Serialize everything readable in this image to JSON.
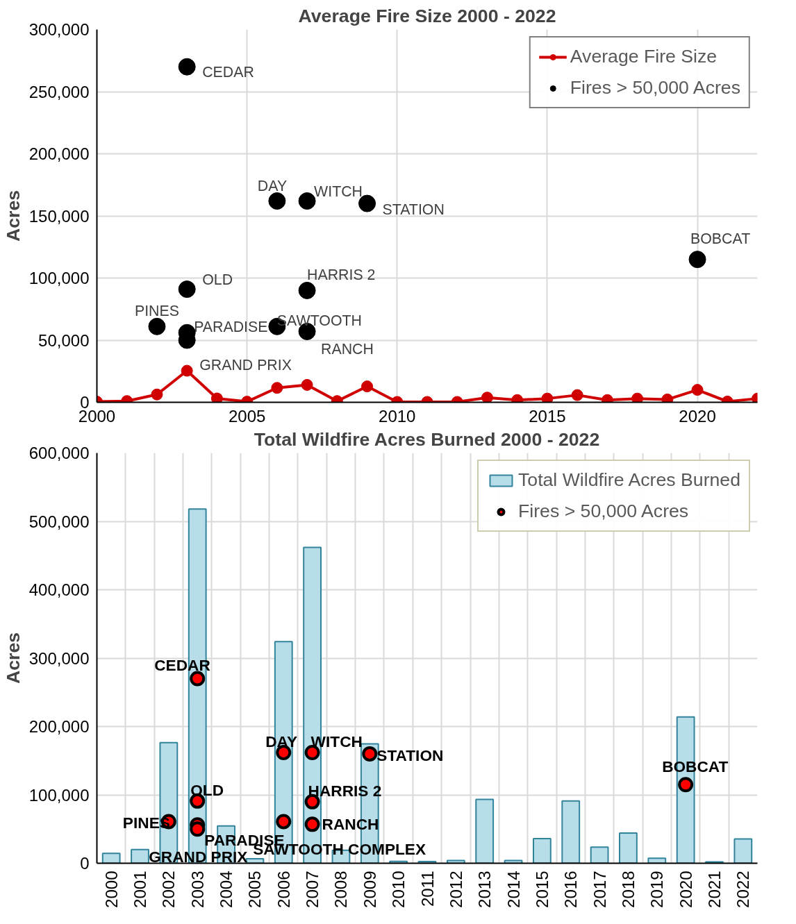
{
  "chart_data": [
    {
      "type": "line",
      "title": "Average Fire Size 2000 - 2022",
      "ylabel": "Acres",
      "xlim": [
        2000,
        2022
      ],
      "xticks": [
        2000,
        2005,
        2010,
        2015,
        2020
      ],
      "ylim": [
        0,
        300000
      ],
      "yticks": [
        0,
        {
          "value": 50000,
          "label": "50,000"
        },
        {
          "value": 100000,
          "label": "100,000"
        },
        {
          "value": 150000,
          "label": "150,000"
        },
        {
          "value": 200000,
          "label": "200,000"
        },
        {
          "value": 250000,
          "label": "250,000"
        },
        {
          "value": 300000,
          "label": "300,000"
        }
      ],
      "grid": true,
      "legend": "top right",
      "series": [
        {
          "name": "Average Fire Size",
          "type": "line",
          "color": "#d00000",
          "marker": "circle",
          "line_style": "solid",
          "x": [
            2000,
            2001,
            2002,
            2003,
            2004,
            2005,
            2006,
            2007,
            2008,
            2009,
            2010,
            2011,
            2012,
            2013,
            2014,
            2015,
            2016,
            2017,
            2018,
            2019,
            2020,
            2021,
            2022
          ],
          "values": [
            500,
            1000,
            6300,
            25400,
            3100,
            500,
            11600,
            14000,
            1000,
            12800,
            300,
            300,
            300,
            3800,
            1800,
            3000,
            5800,
            1800,
            3000,
            2300,
            10000,
            600,
            3000
          ]
        },
        {
          "name": "Fires > 50,000 Acres",
          "type": "scatter",
          "color": "#000000",
          "marker": "circle",
          "x": [
            2003,
            2006,
            2007,
            2009,
            2020,
            2003,
            2007,
            2002,
            2003,
            2003,
            2006,
            2007
          ],
          "values": [
            270000,
            162000,
            162000,
            160000,
            115000,
            91000,
            90000,
            61000,
            56000,
            50000,
            61000,
            57000
          ]
        }
      ],
      "annotations": [
        {
          "text": "CEDAR",
          "x": 2003,
          "y": 270000
        },
        {
          "text": "DAY",
          "x": 2006,
          "y": 162000
        },
        {
          "text": "WITCH",
          "x": 2007,
          "y": 162000
        },
        {
          "text": "STATION",
          "x": 2009,
          "y": 160000
        },
        {
          "text": "BOBCAT",
          "x": 2020,
          "y": 115000
        },
        {
          "text": "OLD",
          "x": 2003,
          "y": 91000
        },
        {
          "text": "HARRIS 2",
          "x": 2007,
          "y": 90000
        },
        {
          "text": "PINES",
          "x": 2002,
          "y": 61000
        },
        {
          "text": "PARADISE",
          "x": 2003,
          "y": 56000
        },
        {
          "text": "GRAND PRIX",
          "x": 2003,
          "y": 50000
        },
        {
          "text": "SAWTOOTH",
          "x": 2006,
          "y": 61000
        },
        {
          "text": "RANCH",
          "x": 2007,
          "y": 57000
        }
      ]
    },
    {
      "type": "bar",
      "title": "Total Wildfire Acres Burned 2000 - 2022",
      "ylabel": "Acres",
      "categories": [
        "2000",
        "2001",
        "2002",
        "2003",
        "2004",
        "2005",
        "2006",
        "2007",
        "2008",
        "2009",
        "2010",
        "2011",
        "2012",
        "2013",
        "2014",
        "2015",
        "2016",
        "2017",
        "2018",
        "2019",
        "2020",
        "2021",
        "2022"
      ],
      "ylim": [
        0,
        600000
      ],
      "yticks": [
        0,
        {
          "value": 100000,
          "label": "100,000"
        },
        {
          "value": 200000,
          "label": "200,000"
        },
        {
          "value": 300000,
          "label": "300,000"
        },
        {
          "value": 400000,
          "label": "400,000"
        },
        {
          "value": 500000,
          "label": "500,000"
        },
        {
          "value": 600000,
          "label": "600,000"
        }
      ],
      "grid": true,
      "legend": "top right",
      "series": [
        {
          "name": "Total Wildfire Acres Burned",
          "type": "bar",
          "color": "#b7dde8",
          "values": [
            14500,
            20000,
            176500,
            518000,
            54500,
            6700,
            324000,
            462000,
            19000,
            174500,
            2800,
            2500,
            4000,
            93300,
            4000,
            36000,
            91000,
            23700,
            44200,
            7400,
            214000,
            2000,
            35500
          ]
        },
        {
          "name": "Fires > 50,000 Acres",
          "type": "scatter",
          "color": "#ff0000",
          "marker": "circle",
          "values": [
            null,
            null,
            61000,
            270000,
            null,
            null,
            162000,
            162000,
            null,
            160000,
            null,
            null,
            null,
            null,
            null,
            null,
            null,
            null,
            null,
            null,
            115000,
            null,
            null
          ]
        },
        {
          "type": "scatter",
          "color": "#ff0000",
          "marker": "circle",
          "values": [
            null,
            null,
            null,
            91000,
            null,
            null,
            61000,
            90000,
            null,
            null,
            null,
            null,
            null,
            null,
            null,
            null,
            null,
            null,
            null,
            null,
            null,
            null,
            null
          ]
        },
        {
          "type": "scatter",
          "color": "#ff0000",
          "marker": "circle",
          "values": [
            null,
            null,
            null,
            56000,
            null,
            null,
            null,
            57000,
            null,
            null,
            null,
            null,
            null,
            null,
            null,
            null,
            null,
            null,
            null,
            null,
            null,
            null,
            null
          ]
        },
        {
          "type": "scatter",
          "color": "#ff0000",
          "marker": "circle",
          "values": [
            null,
            null,
            null,
            50000,
            null,
            null,
            null,
            null,
            null,
            null,
            null,
            null,
            null,
            null,
            null,
            null,
            null,
            null,
            null,
            null,
            null,
            null,
            null
          ]
        }
      ],
      "annotations": [
        {
          "text": "CEDAR",
          "x": "2003",
          "y": 270000
        },
        {
          "text": "DAY",
          "x": "2006",
          "y": 162000
        },
        {
          "text": "WITCH",
          "x": "2007",
          "y": 162000
        },
        {
          "text": "STATION",
          "x": "2009",
          "y": 160000
        },
        {
          "text": "BOBCAT",
          "x": "2020",
          "y": 115000
        },
        {
          "text": "OLD",
          "x": "2003",
          "y": 91000
        },
        {
          "text": "HARRIS 2",
          "x": "2007",
          "y": 90000
        },
        {
          "text": "PINES",
          "x": "2002",
          "y": 61000
        },
        {
          "text": "PARADISE",
          "x": "2003",
          "y": 56000
        },
        {
          "text": "GRAND PRIX",
          "x": "2003",
          "y": 50000
        },
        {
          "text": "SAWTOOTH COMPLEX",
          "x": "2006",
          "y": 61000
        },
        {
          "text": "RANCH",
          "x": "2007",
          "y": 57000
        }
      ]
    }
  ]
}
